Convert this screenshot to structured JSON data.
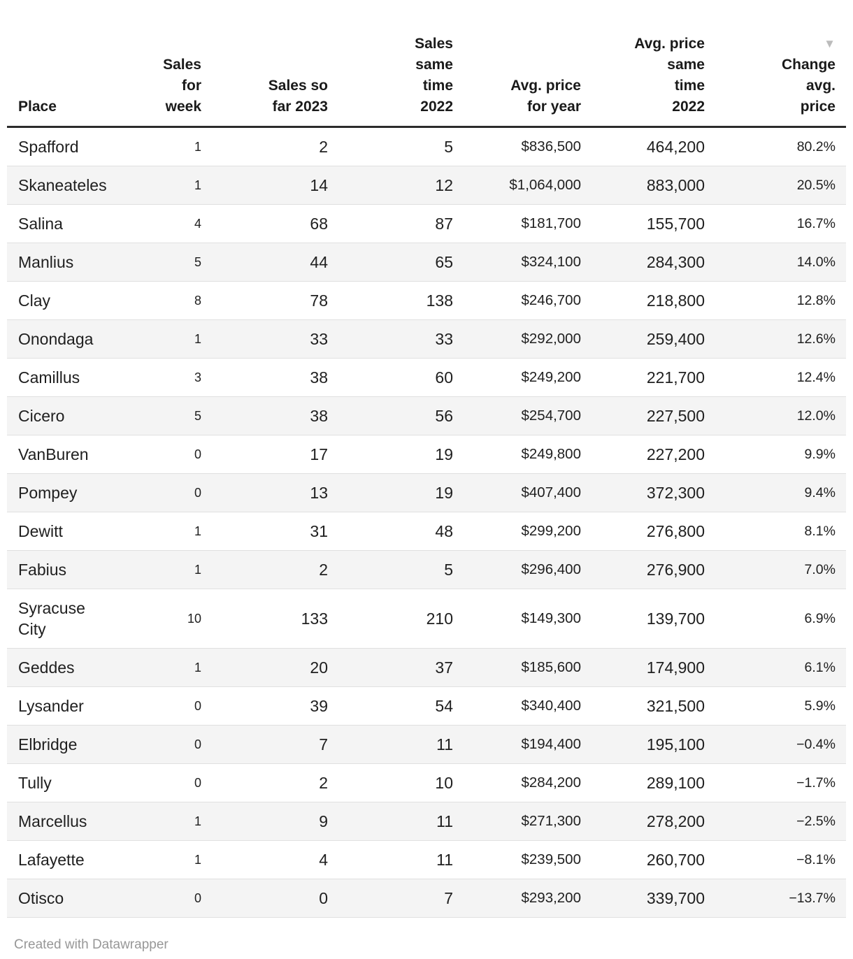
{
  "chart_data": {
    "type": "table",
    "sort": {
      "column": "change_avg_price",
      "direction": "desc",
      "icon": "▼"
    },
    "columns": [
      {
        "key": "place",
        "label": "Place",
        "label_lines": [
          "Place"
        ],
        "align": "left",
        "sorted": false
      },
      {
        "key": "sales_week",
        "label": "Sales for week",
        "label_lines": [
          "Sales",
          "for",
          "week"
        ],
        "align": "right",
        "sorted": false
      },
      {
        "key": "sales_2023",
        "label": "Sales so far 2023",
        "label_lines": [
          "Sales so",
          "far 2023"
        ],
        "align": "right",
        "sorted": false
      },
      {
        "key": "sales_same_2022",
        "label": "Sales same time 2022",
        "label_lines": [
          "Sales",
          "same",
          "time",
          "2022"
        ],
        "align": "right",
        "sorted": false
      },
      {
        "key": "avg_price_year",
        "label": "Avg. price for year",
        "label_lines": [
          "Avg. price",
          "for year"
        ],
        "align": "right",
        "sorted": false
      },
      {
        "key": "avg_price_same_2022",
        "label": "Avg. price same time 2022",
        "label_lines": [
          "Avg. price",
          "same",
          "time",
          "2022"
        ],
        "align": "right",
        "sorted": false
      },
      {
        "key": "change_avg_price",
        "label": "Change avg. price",
        "label_lines": [
          "Change",
          "avg.",
          "price"
        ],
        "align": "right",
        "sorted": true
      }
    ],
    "rows": [
      {
        "place": "Spafford",
        "sales_week": "1",
        "sales_2023": "2",
        "sales_same_2022": "5",
        "avg_price_year": "$836,500",
        "avg_price_same_2022": "464,200",
        "change_avg_price": "80.2%"
      },
      {
        "place": "Skaneateles",
        "sales_week": "1",
        "sales_2023": "14",
        "sales_same_2022": "12",
        "avg_price_year": "$1,064,000",
        "avg_price_same_2022": "883,000",
        "change_avg_price": "20.5%"
      },
      {
        "place": "Salina",
        "sales_week": "4",
        "sales_2023": "68",
        "sales_same_2022": "87",
        "avg_price_year": "$181,700",
        "avg_price_same_2022": "155,700",
        "change_avg_price": "16.7%"
      },
      {
        "place": "Manlius",
        "sales_week": "5",
        "sales_2023": "44",
        "sales_same_2022": "65",
        "avg_price_year": "$324,100",
        "avg_price_same_2022": "284,300",
        "change_avg_price": "14.0%"
      },
      {
        "place": "Clay",
        "sales_week": "8",
        "sales_2023": "78",
        "sales_same_2022": "138",
        "avg_price_year": "$246,700",
        "avg_price_same_2022": "218,800",
        "change_avg_price": "12.8%"
      },
      {
        "place": "Onondaga",
        "sales_week": "1",
        "sales_2023": "33",
        "sales_same_2022": "33",
        "avg_price_year": "$292,000",
        "avg_price_same_2022": "259,400",
        "change_avg_price": "12.6%"
      },
      {
        "place": "Camillus",
        "sales_week": "3",
        "sales_2023": "38",
        "sales_same_2022": "60",
        "avg_price_year": "$249,200",
        "avg_price_same_2022": "221,700",
        "change_avg_price": "12.4%"
      },
      {
        "place": "Cicero",
        "sales_week": "5",
        "sales_2023": "38",
        "sales_same_2022": "56",
        "avg_price_year": "$254,700",
        "avg_price_same_2022": "227,500",
        "change_avg_price": "12.0%"
      },
      {
        "place": "VanBuren",
        "sales_week": "0",
        "sales_2023": "17",
        "sales_same_2022": "19",
        "avg_price_year": "$249,800",
        "avg_price_same_2022": "227,200",
        "change_avg_price": "9.9%"
      },
      {
        "place": "Pompey",
        "sales_week": "0",
        "sales_2023": "13",
        "sales_same_2022": "19",
        "avg_price_year": "$407,400",
        "avg_price_same_2022": "372,300",
        "change_avg_price": "9.4%"
      },
      {
        "place": "Dewitt",
        "sales_week": "1",
        "sales_2023": "31",
        "sales_same_2022": "48",
        "avg_price_year": "$299,200",
        "avg_price_same_2022": "276,800",
        "change_avg_price": "8.1%"
      },
      {
        "place": "Fabius",
        "sales_week": "1",
        "sales_2023": "2",
        "sales_same_2022": "5",
        "avg_price_year": "$296,400",
        "avg_price_same_2022": "276,900",
        "change_avg_price": "7.0%"
      },
      {
        "place": "Syracuse\nCity",
        "sales_week": "10",
        "sales_2023": "133",
        "sales_same_2022": "210",
        "avg_price_year": "$149,300",
        "avg_price_same_2022": "139,700",
        "change_avg_price": "6.9%"
      },
      {
        "place": "Geddes",
        "sales_week": "1",
        "sales_2023": "20",
        "sales_same_2022": "37",
        "avg_price_year": "$185,600",
        "avg_price_same_2022": "174,900",
        "change_avg_price": "6.1%"
      },
      {
        "place": "Lysander",
        "sales_week": "0",
        "sales_2023": "39",
        "sales_same_2022": "54",
        "avg_price_year": "$340,400",
        "avg_price_same_2022": "321,500",
        "change_avg_price": "5.9%"
      },
      {
        "place": "Elbridge",
        "sales_week": "0",
        "sales_2023": "7",
        "sales_same_2022": "11",
        "avg_price_year": "$194,400",
        "avg_price_same_2022": "195,100",
        "change_avg_price": "−0.4%"
      },
      {
        "place": "Tully",
        "sales_week": "0",
        "sales_2023": "2",
        "sales_same_2022": "10",
        "avg_price_year": "$284,200",
        "avg_price_same_2022": "289,100",
        "change_avg_price": "−1.7%"
      },
      {
        "place": "Marcellus",
        "sales_week": "1",
        "sales_2023": "9",
        "sales_same_2022": "11",
        "avg_price_year": "$271,300",
        "avg_price_same_2022": "278,200",
        "change_avg_price": "−2.5%"
      },
      {
        "place": "Lafayette",
        "sales_week": "1",
        "sales_2023": "4",
        "sales_same_2022": "11",
        "avg_price_year": "$239,500",
        "avg_price_same_2022": "260,700",
        "change_avg_price": "−8.1%"
      },
      {
        "place": "Otisco",
        "sales_week": "0",
        "sales_2023": "0",
        "sales_same_2022": "7",
        "avg_price_year": "$293,200",
        "avg_price_same_2022": "339,700",
        "change_avg_price": "−13.7%"
      }
    ]
  },
  "footer": {
    "credit": "Created with Datawrapper"
  },
  "colors": {
    "header_rule": "#2b2b2b",
    "row_rule": "#e0e0e0",
    "stripe": "#f4f4f4",
    "text": "#202020",
    "sort_arrow": "#bcbcbc",
    "credit": "#979797"
  }
}
